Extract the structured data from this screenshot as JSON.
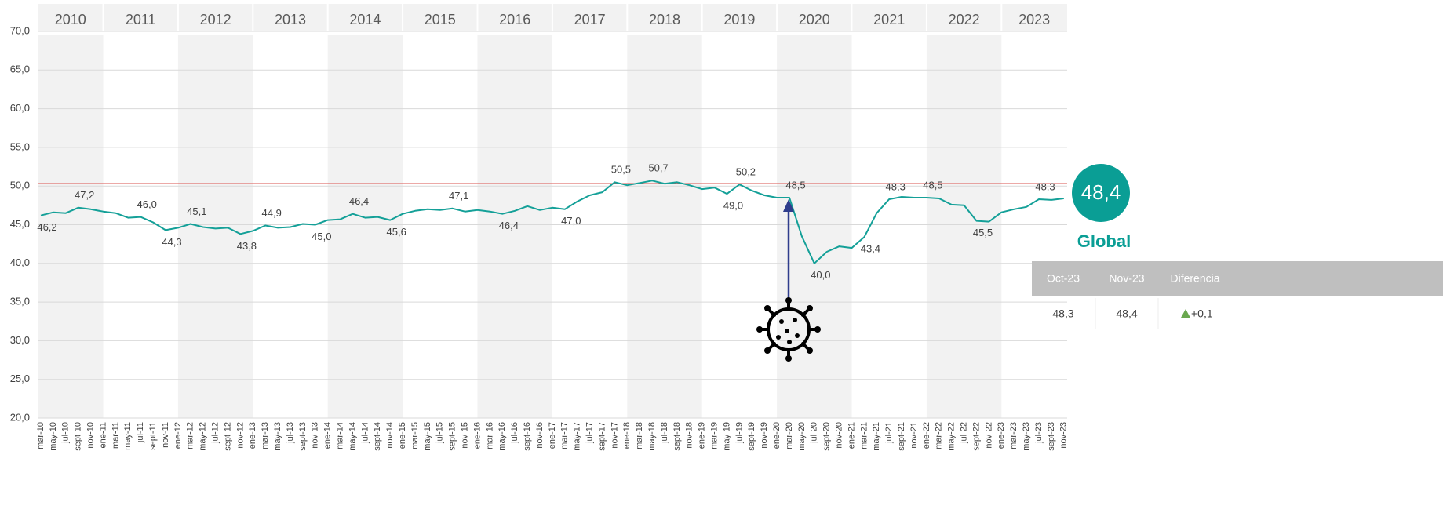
{
  "chart_data": {
    "type": "line",
    "categories": [
      "mar-10",
      "may-10",
      "jul-10",
      "sept-10",
      "nov-10",
      "ene-11",
      "mar-11",
      "may-11",
      "jul-11",
      "sept-11",
      "nov-11",
      "ene-12",
      "mar-12",
      "may-12",
      "jul-12",
      "sept-12",
      "nov-12",
      "ene-13",
      "mar-13",
      "may-13",
      "jul-13",
      "sept-13",
      "nov-13",
      "ene-14",
      "mar-14",
      "may-14",
      "jul-14",
      "sept-14",
      "nov-14",
      "ene-15",
      "mar-15",
      "may-15",
      "jul-15",
      "sept-15",
      "nov-15",
      "ene-16",
      "mar-16",
      "may-16",
      "jul-16",
      "sept-16",
      "nov-16",
      "ene-17",
      "mar-17",
      "may-17",
      "jul-17",
      "sept-17",
      "nov-17",
      "ene-18",
      "mar-18",
      "may-18",
      "jul-18",
      "sept-18",
      "nov-18",
      "ene-19",
      "mar-19",
      "may-19",
      "jul-19",
      "sept-19",
      "nov-19",
      "ene-20",
      "mar-20",
      "may-20",
      "jul-20",
      "sept-20",
      "nov-20",
      "ene-21",
      "mar-21",
      "may-21",
      "jul-21",
      "sept-21",
      "nov-21",
      "ene-22",
      "mar-22",
      "may-22",
      "jul-22",
      "sept-22",
      "nov-22",
      "ene-23",
      "mar-23",
      "may-23",
      "jul-23",
      "sept-23",
      "nov-23"
    ],
    "values": [
      46.2,
      46.6,
      46.5,
      47.2,
      47.0,
      46.7,
      46.5,
      45.9,
      46.0,
      45.3,
      44.3,
      44.6,
      45.1,
      44.7,
      44.5,
      44.6,
      43.8,
      44.2,
      44.9,
      44.6,
      44.7,
      45.1,
      45.0,
      45.6,
      45.7,
      46.4,
      45.9,
      46.0,
      45.6,
      46.4,
      46.8,
      47.0,
      46.9,
      47.1,
      46.7,
      46.9,
      46.7,
      46.4,
      46.8,
      47.4,
      46.9,
      47.2,
      47.0,
      48.0,
      48.8,
      49.2,
      50.5,
      50.1,
      50.4,
      50.7,
      50.3,
      50.5,
      50.1,
      49.6,
      49.8,
      49.0,
      50.2,
      49.4,
      48.8,
      48.5,
      48.5,
      43.5,
      40.0,
      41.5,
      42.2,
      42.0,
      43.4,
      46.5,
      48.3,
      48.6,
      48.5,
      48.5,
      48.4,
      47.6,
      47.5,
      45.5,
      45.4,
      46.6,
      47.0,
      47.3,
      48.3,
      48.2,
      48.4
    ],
    "value_labels": [
      "46,2",
      null,
      null,
      "47,2",
      null,
      null,
      null,
      null,
      "46,0",
      null,
      "44,3",
      null,
      "45,1",
      null,
      null,
      null,
      "43,8",
      null,
      "44,9",
      null,
      null,
      null,
      "45,0",
      null,
      null,
      "46,4",
      null,
      null,
      "45,6",
      null,
      null,
      null,
      null,
      "47,1",
      null,
      null,
      null,
      "46,4",
      null,
      null,
      null,
      null,
      "47,0",
      null,
      null,
      null,
      "50,5",
      null,
      null,
      "50,7",
      null,
      null,
      null,
      null,
      null,
      "49,0",
      "50,2",
      null,
      null,
      null,
      "48,5",
      null,
      "40,0",
      null,
      null,
      null,
      "43,4",
      null,
      "48,3",
      null,
      null,
      "48,5",
      null,
      null,
      null,
      "45,5",
      null,
      null,
      null,
      null,
      "48,3",
      null,
      null
    ],
    "color": "#14a098",
    "ylim": [
      20,
      70
    ],
    "yticks": [
      {
        "value": 20,
        "label": "20,0"
      },
      {
        "value": 25,
        "label": "25,0"
      },
      {
        "value": 30,
        "label": "30,0"
      },
      {
        "value": 35,
        "label": "35,0"
      },
      {
        "value": 40,
        "label": "40,0"
      },
      {
        "value": 45,
        "label": "45,0"
      },
      {
        "value": 50,
        "label": "50,0"
      },
      {
        "value": 55,
        "label": "55,0"
      },
      {
        "value": 60,
        "label": "60,0"
      },
      {
        "value": 65,
        "label": "65,0"
      },
      {
        "value": 70,
        "label": "70,0"
      }
    ],
    "grid": true,
    "reference_line": {
      "value": 50.3,
      "color": "#d9534f"
    },
    "years": [
      "2010",
      "2011",
      "2012",
      "2013",
      "2014",
      "2015",
      "2016",
      "2017",
      "2018",
      "2019",
      "2020",
      "2021",
      "2022",
      "2023"
    ]
  },
  "summary": {
    "value": "48,4",
    "label": "Global",
    "table": {
      "columns": [
        "Oct-23",
        "Nov-23",
        "Diferencia"
      ],
      "rows": [
        [
          "48,3",
          "48,4",
          "+0,1"
        ]
      ]
    }
  }
}
